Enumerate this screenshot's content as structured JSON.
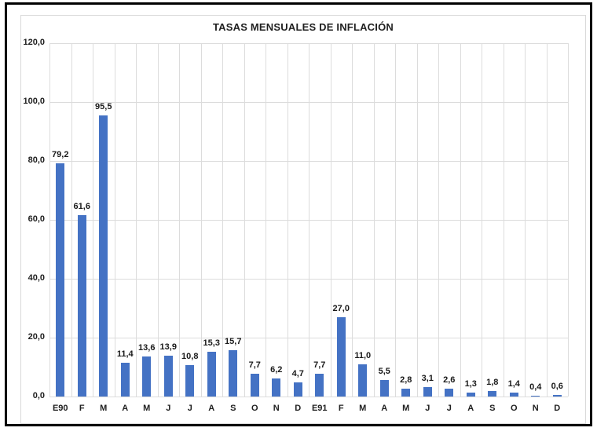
{
  "chart_data": {
    "type": "bar",
    "title": "TASAS MENSUALES DE INFLACIÓN",
    "categories": [
      "E90",
      "F",
      "M",
      "A",
      "M",
      "J",
      "J",
      "A",
      "S",
      "O",
      "N",
      "D",
      "E91",
      "F",
      "M",
      "A",
      "M",
      "J",
      "J",
      "A",
      "S",
      "O",
      "N",
      "D"
    ],
    "values": [
      79.2,
      61.6,
      95.5,
      11.4,
      13.6,
      13.9,
      10.8,
      15.3,
      15.7,
      7.7,
      6.2,
      4.7,
      7.7,
      27.0,
      11.0,
      5.5,
      2.8,
      3.1,
      2.6,
      1.3,
      1.8,
      1.4,
      0.4,
      0.6
    ],
    "value_labels": [
      "79,2",
      "61,6",
      "95,5",
      "11,4",
      "13,6",
      "13,9",
      "10,8",
      "15,3",
      "15,7",
      "7,7",
      "6,2",
      "4,7",
      "7,7",
      "27,0",
      "11,0",
      "5,5",
      "2,8",
      "3,1",
      "2,6",
      "1,3",
      "1,8",
      "1,4",
      "0,4",
      "0,6"
    ],
    "y_tick_values": [
      0,
      20,
      40,
      60,
      80,
      100,
      120
    ],
    "y_tick_labels": [
      "0,0",
      "20,0",
      "40,0",
      "60,0",
      "80,0",
      "100,0",
      "120,0"
    ],
    "ylim": [
      0,
      120
    ],
    "xlabel": "",
    "ylabel": "",
    "legend": "none",
    "grid": "horizontal major every 20 units, vertical line at every category boundary",
    "colors": {
      "bar": "#4472C4",
      "gridline": "#dcdcdc",
      "text": "#1f1f1f",
      "chart_border": "#d9d9d9",
      "frame_border": "#000000",
      "background": "#ffffff"
    }
  }
}
